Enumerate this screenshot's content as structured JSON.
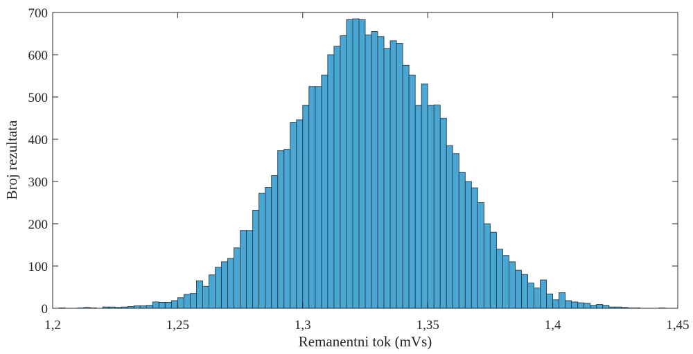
{
  "chart_data": {
    "type": "bar",
    "title": "",
    "xlabel": "Remanentni tok (mVs)",
    "ylabel": "Broj rezultata",
    "xlim": [
      1.2,
      1.45
    ],
    "ylim": [
      0,
      700
    ],
    "xticks": [
      1.2,
      1.25,
      1.3,
      1.35,
      1.4,
      1.45
    ],
    "xtick_labels": [
      "1,2",
      "1,25",
      "1,3",
      "1,35",
      "1,4",
      "1,45"
    ],
    "yticks": [
      0,
      100,
      200,
      300,
      400,
      500,
      600,
      700
    ],
    "ytick_labels": [
      "0",
      "100",
      "200",
      "300",
      "400",
      "500",
      "600",
      "700"
    ],
    "grid": false,
    "legend": "none",
    "bar_color": "#4aa6d2",
    "bar_edge_color": "#1f3d4f",
    "bin_width": 0.0025,
    "bins_start": 1.2025,
    "values": [
      1,
      0,
      0,
      1,
      2,
      1,
      0,
      3,
      3,
      2,
      3,
      4,
      6,
      6,
      7,
      15,
      14,
      14,
      18,
      25,
      33,
      35,
      65,
      52,
      79,
      97,
      110,
      118,
      143,
      184,
      184,
      232,
      272,
      286,
      314,
      373,
      376,
      440,
      446,
      480,
      525,
      525,
      552,
      600,
      620,
      645,
      683,
      685,
      683,
      647,
      655,
      643,
      615,
      633,
      627,
      575,
      552,
      480,
      531,
      480,
      481,
      450,
      385,
      366,
      322,
      300,
      285,
      250,
      200,
      180,
      140,
      125,
      110,
      90,
      80,
      60,
      48,
      67,
      34,
      20,
      37,
      18,
      15,
      13,
      12,
      7,
      9,
      7,
      3,
      3,
      2,
      1,
      1,
      0,
      0,
      0,
      1
    ]
  }
}
